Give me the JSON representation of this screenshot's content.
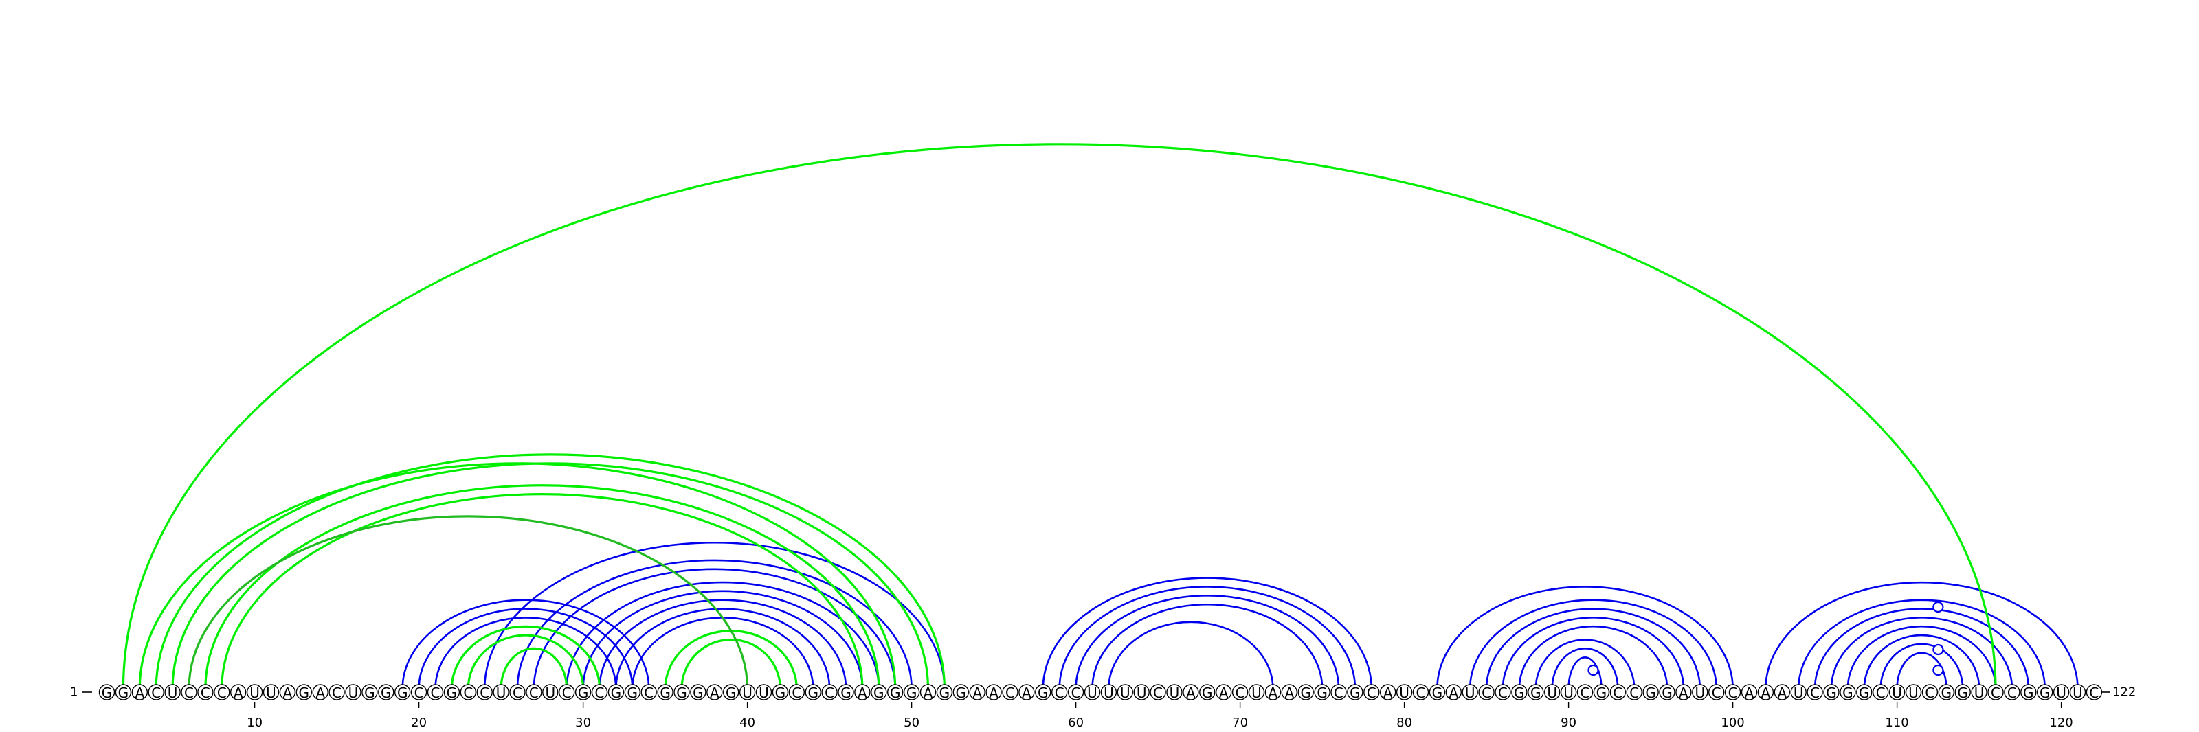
{
  "sequence": "GGACUCCCAUUAGACUGGGCCGCCUCCUCGCGGCGGGAGUUGCGCGAGGGAGGAACAGCCUUUUCUAGACUAAGGCGCAUCGAUCCGGUUCGCCGGAUCCAAAUCGGGCUUCGGUCCGGUUC",
  "start_label": "1",
  "end_label": "122",
  "ticks": [
    "10",
    "20",
    "30",
    "40",
    "50",
    "60",
    "70",
    "80",
    "90",
    "100",
    "110",
    "120"
  ],
  "colors": {
    "structure_a": "#0000ee",
    "structure_b": "#00ee00",
    "structure_b_shade": "#22bb22"
  },
  "structures": [
    {
      "color": "structure_a",
      "pairs": [
        [
          19,
          34
        ],
        [
          20,
          33
        ],
        [
          21,
          32
        ],
        [
          22,
          31
        ],
        [
          23,
          30
        ],
        [
          24,
          52
        ],
        [
          26,
          50
        ],
        [
          27,
          49
        ],
        [
          29,
          48
        ],
        [
          30,
          47
        ],
        [
          31,
          46
        ],
        [
          32,
          45
        ],
        [
          33,
          44
        ],
        [
          58,
          78
        ],
        [
          59,
          77
        ],
        [
          60,
          76
        ],
        [
          61,
          75
        ],
        [
          62,
          72
        ],
        [
          82,
          100
        ],
        [
          84,
          99
        ],
        [
          85,
          98
        ],
        [
          86,
          97
        ],
        [
          87,
          96
        ],
        [
          88,
          94
        ],
        [
          89,
          93
        ],
        [
          90,
          92
        ],
        [
          102,
          121
        ],
        [
          104,
          119
        ],
        [
          105,
          118
        ],
        [
          106,
          117
        ],
        [
          107,
          116
        ],
        [
          108,
          115
        ],
        [
          109,
          114
        ],
        [
          110,
          113
        ]
      ]
    },
    {
      "color": "structure_b",
      "pairs": [
        [
          2,
          116
        ],
        [
          3,
          49
        ],
        [
          4,
          52
        ],
        [
          5,
          51
        ],
        [
          7,
          48
        ],
        [
          8,
          47
        ],
        [
          22,
          31
        ],
        [
          23,
          30
        ],
        [
          25,
          29
        ],
        [
          35,
          43
        ],
        [
          36,
          42
        ]
      ]
    },
    {
      "color": "structure_b_shade",
      "pairs": [
        [
          6,
          40
        ]
      ]
    }
  ],
  "noncanonical_positions": [
    91,
    112,
    113,
    114
  ]
}
